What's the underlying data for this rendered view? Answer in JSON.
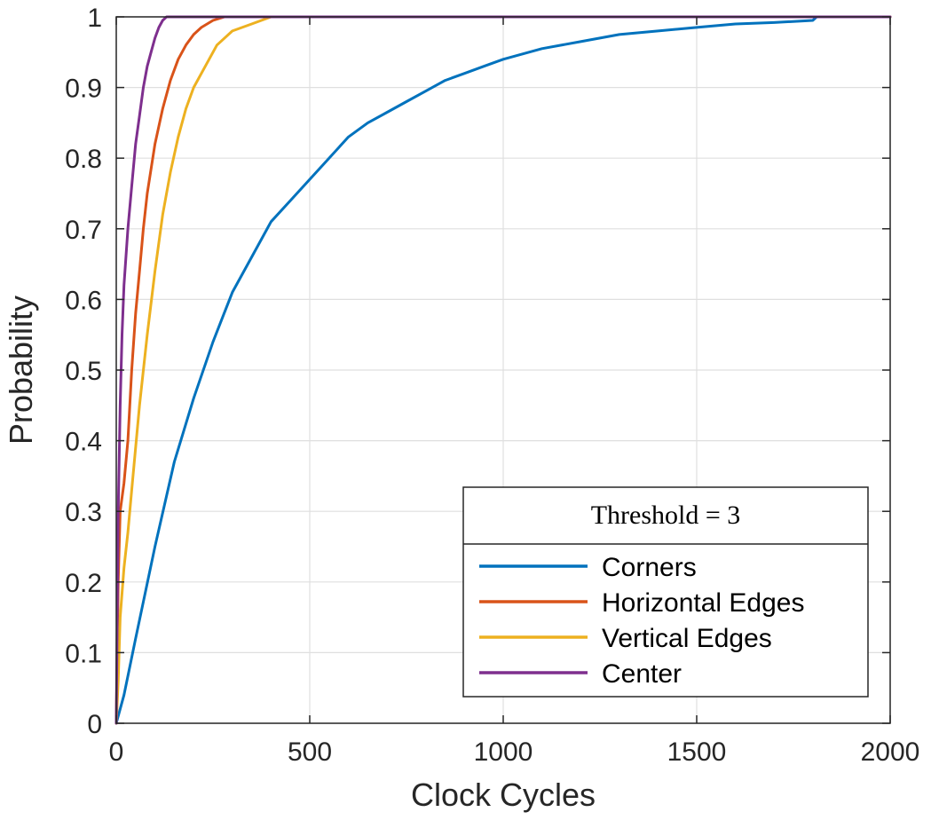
{
  "chart_data": {
    "type": "line",
    "xlabel": "Clock Cycles",
    "ylabel": "Probability",
    "xlim": [
      0,
      2000
    ],
    "ylim": [
      0,
      1
    ],
    "xticks": [
      "0",
      "500",
      "1000",
      "1500",
      "2000"
    ],
    "yticks": [
      "0",
      "0.1",
      "0.2",
      "0.3",
      "0.4",
      "0.5",
      "0.6",
      "0.7",
      "0.8",
      "0.9",
      "1"
    ],
    "grid": true,
    "legend": {
      "title": "Threshold = 3",
      "placement": "bottom-right"
    },
    "series": [
      {
        "name": "Corners",
        "color": "#0072BD",
        "points": [
          [
            0,
            0
          ],
          [
            20,
            0.04
          ],
          [
            50,
            0.12
          ],
          [
            100,
            0.25
          ],
          [
            150,
            0.37
          ],
          [
            200,
            0.46
          ],
          [
            250,
            0.54
          ],
          [
            300,
            0.61
          ],
          [
            350,
            0.66
          ],
          [
            400,
            0.71
          ],
          [
            450,
            0.74
          ],
          [
            500,
            0.77
          ],
          [
            550,
            0.8
          ],
          [
            600,
            0.83
          ],
          [
            650,
            0.85
          ],
          [
            700,
            0.865
          ],
          [
            750,
            0.88
          ],
          [
            800,
            0.895
          ],
          [
            850,
            0.91
          ],
          [
            900,
            0.92
          ],
          [
            950,
            0.93
          ],
          [
            1000,
            0.94
          ],
          [
            1100,
            0.955
          ],
          [
            1200,
            0.965
          ],
          [
            1300,
            0.975
          ],
          [
            1400,
            0.98
          ],
          [
            1500,
            0.985
          ],
          [
            1600,
            0.99
          ],
          [
            1700,
            0.992
          ],
          [
            1800,
            0.995
          ],
          [
            1810,
            1
          ],
          [
            2000,
            1
          ]
        ]
      },
      {
        "name": "Horizontal Edges",
        "color": "#D95319",
        "points": [
          [
            0,
            0
          ],
          [
            5,
            0.2
          ],
          [
            10,
            0.3
          ],
          [
            20,
            0.34
          ],
          [
            30,
            0.4
          ],
          [
            40,
            0.5
          ],
          [
            50,
            0.58
          ],
          [
            60,
            0.64
          ],
          [
            70,
            0.7
          ],
          [
            80,
            0.75
          ],
          [
            100,
            0.82
          ],
          [
            120,
            0.87
          ],
          [
            140,
            0.91
          ],
          [
            160,
            0.94
          ],
          [
            180,
            0.96
          ],
          [
            200,
            0.975
          ],
          [
            220,
            0.985
          ],
          [
            250,
            0.995
          ],
          [
            280,
            1
          ],
          [
            2000,
            1
          ]
        ]
      },
      {
        "name": "Vertical Edges",
        "color": "#EDB120",
        "points": [
          [
            0,
            0
          ],
          [
            5,
            0.06
          ],
          [
            10,
            0.15
          ],
          [
            20,
            0.22
          ],
          [
            30,
            0.27
          ],
          [
            40,
            0.33
          ],
          [
            60,
            0.45
          ],
          [
            80,
            0.55
          ],
          [
            100,
            0.64
          ],
          [
            120,
            0.72
          ],
          [
            140,
            0.78
          ],
          [
            160,
            0.83
          ],
          [
            180,
            0.87
          ],
          [
            200,
            0.9
          ],
          [
            230,
            0.93
          ],
          [
            260,
            0.96
          ],
          [
            300,
            0.98
          ],
          [
            350,
            0.99
          ],
          [
            400,
            1
          ],
          [
            2000,
            1
          ]
        ]
      },
      {
        "name": "Center",
        "color": "#7E2F8E",
        "points": [
          [
            0,
            0
          ],
          [
            5,
            0.3
          ],
          [
            10,
            0.45
          ],
          [
            15,
            0.55
          ],
          [
            20,
            0.62
          ],
          [
            30,
            0.7
          ],
          [
            40,
            0.76
          ],
          [
            50,
            0.82
          ],
          [
            60,
            0.86
          ],
          [
            70,
            0.9
          ],
          [
            80,
            0.93
          ],
          [
            90,
            0.95
          ],
          [
            100,
            0.97
          ],
          [
            110,
            0.985
          ],
          [
            120,
            0.995
          ],
          [
            130,
            1
          ],
          [
            2000,
            1
          ]
        ]
      }
    ]
  }
}
